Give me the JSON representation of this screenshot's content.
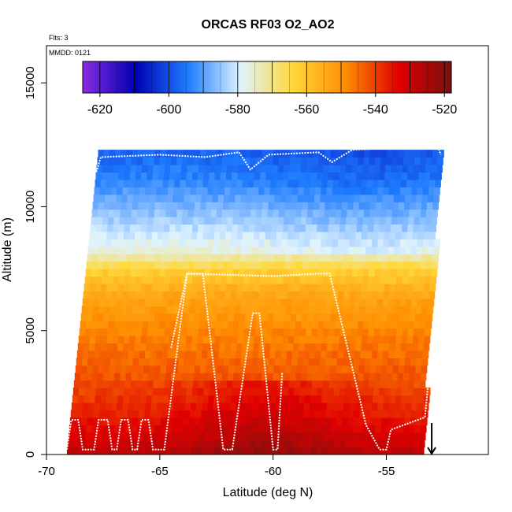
{
  "chart_data": {
    "type": "heatmap",
    "title": "ORCAS RF03 O2_AO2",
    "subtitle_lines": [
      "Flts: 3",
      "MMDD: 0121"
    ],
    "xlabel": "Latitude (deg N)",
    "ylabel": "Altitude (m)",
    "xlim": [
      -70,
      -50.5
    ],
    "ylim": [
      0,
      16500
    ],
    "x_ticks": [
      -70,
      -65,
      -60,
      -55
    ],
    "x_tick_labels": [
      "-70",
      "-65",
      "-60",
      "-55"
    ],
    "y_ticks": [
      0,
      5000,
      10000,
      15000
    ],
    "y_tick_labels": [
      "0",
      "5000",
      "10000",
      "15000"
    ],
    "colorbar": {
      "range": [
        -625,
        -518
      ],
      "tick_values": [
        -620,
        -600,
        -580,
        -560,
        -540,
        -520
      ],
      "tick_labels": [
        "-620",
        "-600",
        "-580",
        "-560",
        "-540",
        "-520"
      ],
      "colors": [
        "#8a2be2",
        "#0000b4",
        "#1e7cff",
        "#dff3ff",
        "#ffd83a",
        "#ff8c00",
        "#e00000",
        "#7a1010"
      ]
    },
    "field_profile": [
      {
        "alt": 0,
        "value": -527
      },
      {
        "alt": 500,
        "value": -531
      },
      {
        "alt": 1500,
        "value": -536
      },
      {
        "alt": 3000,
        "value": -542
      },
      {
        "alt": 5000,
        "value": -548
      },
      {
        "alt": 6500,
        "value": -554
      },
      {
        "alt": 7500,
        "value": -563
      },
      {
        "alt": 8200,
        "value": -576
      },
      {
        "alt": 9500,
        "value": -584
      },
      {
        "alt": 11000,
        "value": -593
      },
      {
        "alt": 12200,
        "value": -597
      }
    ],
    "coverage": {
      "top_alt": 12200,
      "lat_south_edge_at_top": -67.7,
      "lat_south_edge_at_bottom": -69.1,
      "lat_north_edge_at_top": -52.6,
      "lat_north_edge_at_bottom": -53.5
    },
    "flight_track": [
      [
        -69.1,
        200
      ],
      [
        -68.9,
        1400
      ],
      [
        -68.6,
        1400
      ],
      [
        -68.4,
        200
      ],
      [
        -67.9,
        200
      ],
      [
        -67.7,
        1400
      ],
      [
        -67.3,
        1400
      ],
      [
        -67.1,
        200
      ],
      [
        -66.9,
        200
      ],
      [
        -66.7,
        1400
      ],
      [
        -66.4,
        1400
      ],
      [
        -66.2,
        200
      ],
      [
        -66.0,
        200
      ],
      [
        -65.8,
        1400
      ],
      [
        -65.5,
        1400
      ],
      [
        -65.3,
        200
      ],
      [
        -64.8,
        200
      ],
      [
        -63.8,
        7300
      ],
      [
        -63.1,
        7300
      ],
      [
        -62.2,
        200
      ],
      [
        -61.8,
        200
      ],
      [
        -60.9,
        5700
      ],
      [
        -60.6,
        5700
      ],
      [
        -60.0,
        200
      ],
      [
        -59.8,
        200
      ],
      [
        -59.6,
        3300
      ]
    ],
    "flight_track_2": [
      [
        -64.5,
        4300
      ],
      [
        -63.8,
        7300
      ],
      [
        -60.0,
        7200
      ],
      [
        -58.0,
        7300
      ],
      [
        -57.5,
        7300
      ],
      [
        -55.9,
        1200
      ],
      [
        -55.3,
        200
      ],
      [
        -55.0,
        200
      ],
      [
        -54.8,
        1000
      ],
      [
        -53.3,
        1500
      ],
      [
        -52.7,
        7000
      ],
      [
        -52.6,
        7300
      ]
    ],
    "flight_track_3": [
      [
        -67.8,
        11400
      ],
      [
        -67.6,
        12000
      ],
      [
        -65.0,
        12100
      ],
      [
        -63.0,
        12000
      ],
      [
        -61.5,
        12200
      ],
      [
        -61.0,
        11500
      ],
      [
        -60.2,
        12100
      ],
      [
        -58.0,
        12200
      ],
      [
        -57.4,
        11800
      ],
      [
        -56.5,
        12300
      ],
      [
        -54.0,
        12400
      ],
      [
        -52.8,
        12600
      ],
      [
        -52.6,
        12100
      ]
    ],
    "marker": {
      "lat": -53.0,
      "alt_top": 700,
      "alt_bottom": 0
    }
  }
}
